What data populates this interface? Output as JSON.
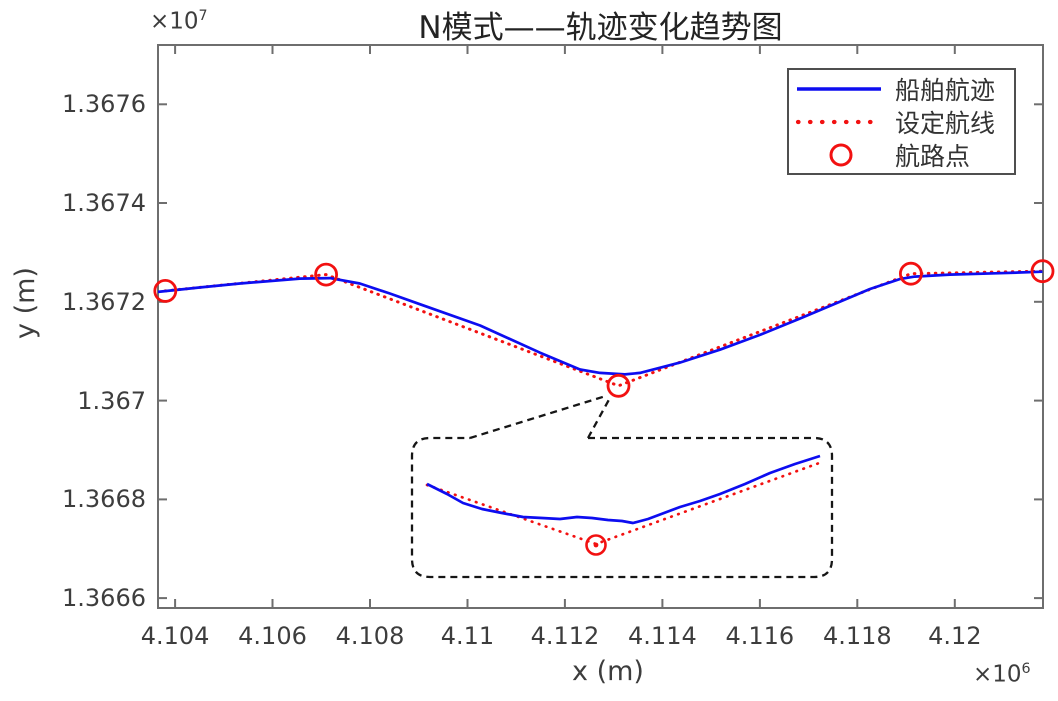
{
  "title": "N模式——轨迹变化趋势图",
  "axes": {
    "x_label": "x (m)",
    "y_label": "y (m)",
    "x_mult_base": "×10",
    "x_mult_exp": "6",
    "y_mult_base": "×10",
    "y_mult_exp": "7"
  },
  "legend": {
    "items": [
      {
        "label": "船舶航迹",
        "type": "solid-line",
        "color": "#0d0df0"
      },
      {
        "label": "设定航线",
        "type": "dotted-line",
        "color": "#f21111"
      },
      {
        "label": "航路点",
        "type": "circle-marker",
        "color": "#f21111"
      }
    ]
  },
  "colors": {
    "trajectory": "#0d0df0",
    "route": "#f21111",
    "axis": "#6e6e6e",
    "text": "#3d3d3d",
    "callout": "#161616"
  },
  "chart_data": {
    "type": "line",
    "title": "N模式——轨迹变化趋势图",
    "xlabel": "x (m)",
    "ylabel": "y (m)",
    "x_unit_multiplier": "1e6",
    "y_unit_multiplier": "1e7",
    "xlim": [
      4.10365,
      4.12181
    ],
    "ylim": [
      1.36658,
      1.36772
    ],
    "grid": false,
    "legend_position": "top-right",
    "x_tick_values": [
      4.104,
      4.106,
      4.108,
      4.11,
      4.112,
      4.114,
      4.116,
      4.118,
      4.12
    ],
    "x_tick_labels": [
      "4.104",
      "4.106",
      "4.108",
      "4.11",
      "4.112",
      "4.114",
      "4.116",
      "4.118",
      "4.12"
    ],
    "y_tick_values": [
      1.3666,
      1.3668,
      1.367,
      1.3672,
      1.3674,
      1.3676
    ],
    "y_tick_labels": [
      "1.3666",
      "1.3668",
      "1.367",
      "1.3672",
      "1.3674",
      "1.3676"
    ],
    "series": [
      {
        "name": "船舶航迹",
        "style": "solid",
        "color": "#0d0df0",
        "points": [
          [
            4.10365,
            1.36722
          ],
          [
            4.1045,
            1.367229
          ],
          [
            4.10533,
            1.367237
          ],
          [
            4.10656,
            1.367247
          ],
          [
            4.10718,
            1.367248
          ],
          [
            4.10779,
            1.367237
          ],
          [
            4.1084,
            1.367217
          ],
          [
            4.10903,
            1.367195
          ],
          [
            4.11026,
            1.367152
          ],
          [
            4.11149,
            1.367097
          ],
          [
            4.11231,
            1.367063
          ],
          [
            4.11272,
            1.367056
          ],
          [
            4.11323,
            1.367053
          ],
          [
            4.11354,
            1.367056
          ],
          [
            4.11436,
            1.367077
          ],
          [
            4.11518,
            1.367103
          ],
          [
            4.116,
            1.367133
          ],
          [
            4.11682,
            1.367166
          ],
          [
            4.11764,
            1.3672
          ],
          [
            4.11826,
            1.367226
          ],
          [
            4.11887,
            1.367246
          ],
          [
            4.11918,
            1.367251
          ],
          [
            4.1199,
            1.367255
          ],
          [
            4.12092,
            1.367258
          ],
          [
            4.1218,
            1.367261
          ]
        ]
      },
      {
        "name": "设定航线",
        "style": "dotted",
        "color": "#f21111",
        "points": [
          [
            4.1038,
            1.367222
          ],
          [
            4.1071,
            1.367255
          ],
          [
            4.1131,
            1.36703
          ],
          [
            4.1191,
            1.367257
          ],
          [
            4.1218,
            1.367262
          ]
        ]
      },
      {
        "name": "航路点",
        "style": "circle-markers",
        "color": "#f21111",
        "points": [
          [
            4.1038,
            1.367222
          ],
          [
            4.1071,
            1.367255
          ],
          [
            4.1131,
            1.36703
          ],
          [
            4.1191,
            1.367257
          ],
          [
            4.1218,
            1.367262
          ]
        ]
      }
    ],
    "inset": {
      "description": "magnified detail of trajectory near waypoint 3 (valley)",
      "trajectory_path": [
        [
          15,
          46
        ],
        [
          35,
          56
        ],
        [
          51,
          65
        ],
        [
          70,
          71
        ],
        [
          90,
          75
        ],
        [
          111,
          79
        ],
        [
          130,
          80
        ],
        [
          148,
          81
        ],
        [
          165,
          79
        ],
        [
          180,
          80
        ],
        [
          196,
          82
        ],
        [
          210,
          83
        ],
        [
          221,
          85
        ],
        [
          236,
          81
        ],
        [
          252,
          75
        ],
        [
          268,
          69
        ],
        [
          288,
          63
        ],
        [
          308,
          56
        ],
        [
          333,
          46
        ],
        [
          358,
          35
        ],
        [
          383,
          26
        ],
        [
          408,
          18
        ]
      ],
      "route_path": [
        [
          15,
          47
        ],
        [
          184,
          106
        ],
        [
          410,
          24
        ]
      ],
      "waypoint_marker": [
        184,
        107
      ]
    }
  }
}
